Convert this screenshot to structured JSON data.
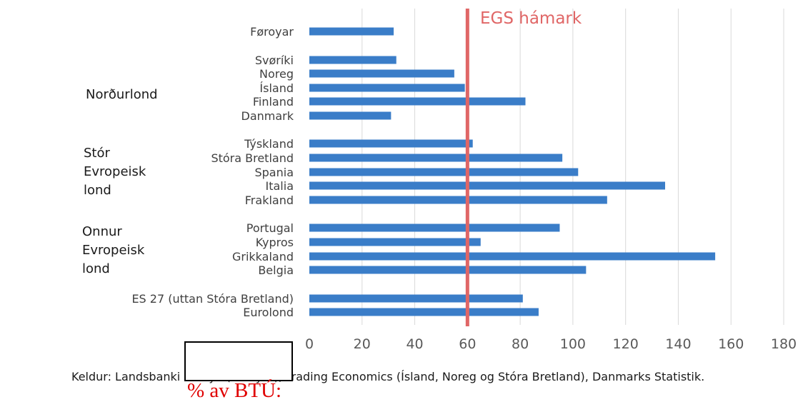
{
  "chart_data": {
    "type": "bar",
    "orientation": "horizontal",
    "categories": [
      "Føroyar",
      "Svøríki",
      "Noreg",
      "Ísland",
      "Finland",
      "Danmark",
      "Týskland",
      "Stóra Bretland",
      "Spania",
      "Italia",
      "Frakland",
      "Portugal",
      "Kypros",
      "Grikkaland",
      "Belgia",
      "ES 27 (uttan Stóra Bretland)",
      "Eurolond"
    ],
    "values": [
      32,
      33,
      55,
      59,
      82,
      31,
      62,
      96,
      102,
      135,
      113,
      95,
      65,
      154,
      105,
      81,
      87
    ],
    "groups": [
      {
        "label_lines": [
          "Norðurlond"
        ],
        "members": [
          "Svøríki",
          "Noreg",
          "Ísland",
          "Finland",
          "Danmark"
        ]
      },
      {
        "label_lines": [
          "Stór",
          "Evropeisk",
          "lond"
        ],
        "members": [
          "Týskland",
          "Stóra Bretland",
          "Spania",
          "Italia",
          "Frakland"
        ]
      },
      {
        "label_lines": [
          "Onnur",
          "Evropeisk",
          "lond"
        ],
        "members": [
          "Portugal",
          "Kypros",
          "Grikkaland",
          "Belgia"
        ]
      }
    ],
    "xlim": [
      0,
      180
    ],
    "xticks": [
      0,
      20,
      40,
      60,
      80,
      100,
      120,
      140,
      160,
      180
    ],
    "reference_line": {
      "value": 60,
      "label": "EGS hámark"
    },
    "unit_label": "% av BTÚ:",
    "grid": "vertical",
    "colors": {
      "bar": "#3a7dc8",
      "reference": "#e06666",
      "grid": "#d9d9d9"
    }
  },
  "source_note": "Keldur: Landsbanki Føroya (Føroyar), Trading Economics (Ísland, Noreg og Stóra Bretland), Danmarks Statistik."
}
